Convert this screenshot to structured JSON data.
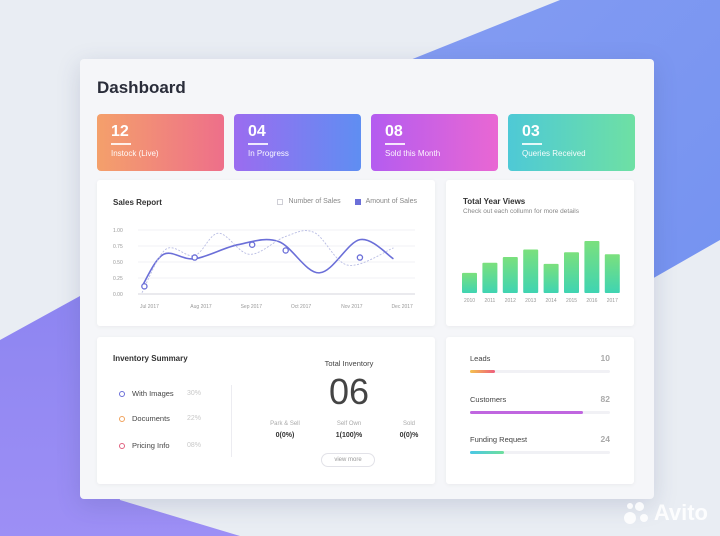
{
  "page": {
    "title": "Dashboard"
  },
  "stats": [
    {
      "value": "12",
      "label": "Instock (Live)",
      "gradient": [
        "#f4a06b",
        "#ee6f8a"
      ]
    },
    {
      "value": "04",
      "label": "In Progress",
      "gradient": [
        "#9b6cf0",
        "#5f8ef2"
      ]
    },
    {
      "value": "08",
      "label": "Sold this Month",
      "gradient": [
        "#b45cf0",
        "#e967d3"
      ]
    },
    {
      "value": "03",
      "label": "Queries Received",
      "gradient": [
        "#4ec9d6",
        "#6ee0a4"
      ]
    }
  ],
  "sales_report": {
    "title": "Sales Report",
    "legend": [
      {
        "label": "Number of Sales",
        "color": "#ffffff",
        "border": "#cfcfd6"
      },
      {
        "label": "Amount of Sales",
        "color": "#6b6fd8",
        "border": "#6b6fd8"
      }
    ],
    "chart_data": {
      "type": "line",
      "categories": [
        "Jul 2017",
        "Aug 2017",
        "Sep 2017",
        "Oct 2017",
        "Nov 2017",
        "Dec 2017"
      ],
      "yticks": [
        "1.00",
        "0.75",
        "0.50",
        "0.25",
        "0.00"
      ],
      "ylim": [
        0,
        1
      ],
      "series": [
        {
          "name": "Amount of Sales",
          "color": "#6b6fd8",
          "style": "solid",
          "x": [
            0,
            0.45,
            1.1,
            2.0,
            2.85,
            3.7,
            4.55,
            5.25
          ],
          "values": [
            0.12,
            0.62,
            0.55,
            0.77,
            0.82,
            0.33,
            0.85,
            0.55
          ]
        },
        {
          "name": "Number of Sales",
          "color": "#b8bce3",
          "style": "dashed",
          "x": [
            0,
            0.5,
            1.1,
            1.6,
            2.25,
            3.0,
            3.6,
            4.3,
            5.25
          ],
          "values": [
            0.02,
            0.7,
            0.6,
            0.95,
            0.62,
            0.9,
            0.96,
            0.45,
            0.72
          ]
        }
      ],
      "markers": [
        {
          "x": 0.05,
          "y": 0.12
        },
        {
          "x": 1.1,
          "y": 0.57
        },
        {
          "x": 2.3,
          "y": 0.77
        },
        {
          "x": 3.0,
          "y": 0.68
        },
        {
          "x": 4.55,
          "y": 0.57
        }
      ]
    }
  },
  "year_views": {
    "title": "Total Year Views",
    "subtitle": "Check out each collumn for more details",
    "chart_data": {
      "type": "bar",
      "categories": [
        "2010",
        "2011",
        "2012",
        "2013",
        "2014",
        "2015",
        "2016",
        "2017"
      ],
      "values": [
        0.38,
        0.57,
        0.68,
        0.82,
        0.55,
        0.77,
        0.98,
        0.73
      ],
      "ylim": [
        0,
        1
      ]
    }
  },
  "inventory": {
    "title": "Inventory Summary",
    "items": [
      {
        "label": "With Images",
        "pct": "30%",
        "color": "#6b6fd8"
      },
      {
        "label": "Documents",
        "pct": "22%",
        "color": "#f0a25c"
      },
      {
        "label": "Pricing Info",
        "pct": "08%",
        "color": "#e0607e"
      }
    ],
    "total_label": "Total Inventory",
    "total_value": "06",
    "breakdown": [
      {
        "label": "Park & Sell",
        "value": "0(0%)"
      },
      {
        "label": "Self Own",
        "value": "1(100)%"
      },
      {
        "label": "Sold",
        "value": "0(0)%"
      }
    ],
    "view_more": "view more"
  },
  "metrics": [
    {
      "label": "Leads",
      "value": "10",
      "progress": 0.18,
      "gradient": [
        "#f4c24e",
        "#ee5d7c"
      ]
    },
    {
      "label": "Customers",
      "value": "82",
      "progress": 0.81,
      "gradient": [
        "#c066e0",
        "#c066e0"
      ]
    },
    {
      "label": "Funding Request",
      "value": "24",
      "progress": 0.24,
      "gradient": [
        "#4ac7e6",
        "#6edf9c"
      ]
    }
  ],
  "watermark": {
    "text": "Avito"
  }
}
